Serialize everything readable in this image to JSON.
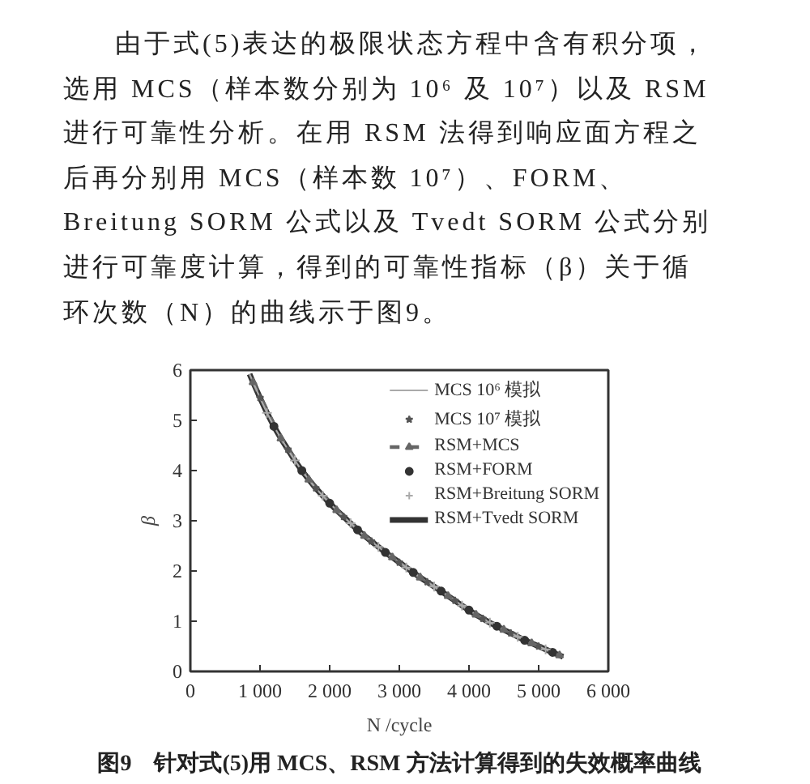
{
  "chart_data": {
    "type": "line",
    "title": "图9　针对式(5)用 MCS、RSM 方法计算得到的失效概率曲线",
    "annotations": [
      "由于式(5)表达的极限状态方程中含有积分项，选用 MCS（样本数分别为 10⁶ 及 10⁷）以及 RSM 进行可靠性分析。在用 RSM 法得到响应面方程之后再分别用 MCS（样本数 10⁷）、FORM、Breitung SORM 公式以及 Tvedt SORM 公式分别进行可靠度计算，得到的可靠性指标（β）关于循环次数（N）的曲线示于图9。"
    ],
    "xlabel": "N /cycle",
    "ylabel": "β",
    "x": [
      850,
      900,
      1000,
      1100,
      1200,
      1300,
      1400,
      1500,
      1600,
      1700,
      1800,
      1900,
      2000,
      2100,
      2200,
      2300,
      2400,
      2500,
      2600,
      2700,
      2800,
      2900,
      3000,
      3100,
      3200,
      3300,
      3400,
      3500,
      3600,
      3700,
      3800,
      3900,
      4000,
      4100,
      4200,
      4300,
      4400,
      4500,
      4600,
      4700,
      4800,
      4900,
      5000,
      5100,
      5200,
      5300,
      5350
    ],
    "series": [
      {
        "name": "MCS 10⁶ 模拟",
        "line_style": "solid",
        "marker": "none",
        "color": "#aaaaaa",
        "values": [
          5.92,
          5.76,
          5.45,
          5.15,
          4.88,
          4.64,
          4.42,
          4.2,
          4.0,
          3.82,
          3.65,
          3.5,
          3.35,
          3.21,
          3.08,
          2.95,
          2.82,
          2.7,
          2.59,
          2.48,
          2.37,
          2.27,
          2.17,
          2.07,
          1.97,
          1.87,
          1.78,
          1.69,
          1.6,
          1.5,
          1.41,
          1.31,
          1.22,
          1.13,
          1.05,
          0.97,
          0.9,
          0.83,
          0.76,
          0.69,
          0.62,
          0.56,
          0.5,
          0.44,
          0.38,
          0.32,
          0.29
        ]
      },
      {
        "name": "MCS 10⁷ 模拟",
        "type": "scatter",
        "marker": "star",
        "color": "#555555",
        "x": [
          1000,
          1400,
          1800,
          2200,
          2600,
          3000,
          3400,
          3800,
          4200,
          4600,
          5000
        ],
        "values": [
          5.45,
          4.42,
          3.65,
          3.08,
          2.59,
          2.17,
          1.78,
          1.41,
          1.05,
          0.76,
          0.5
        ]
      },
      {
        "name": "RSM+MCS",
        "line_style": "dashed",
        "marker": "triangle",
        "color": "#666666",
        "x": [
          900,
          1300,
          1700,
          2100,
          2500,
          2900,
          3300,
          3700,
          4100,
          4500,
          4900,
          5300
        ],
        "values": [
          5.76,
          4.64,
          3.82,
          3.21,
          2.7,
          2.27,
          1.87,
          1.5,
          1.13,
          0.83,
          0.56,
          0.32
        ]
      },
      {
        "name": "RSM+FORM",
        "type": "scatter",
        "marker": "circle",
        "color": "#333333",
        "x": [
          1200,
          1600,
          2000,
          2400,
          2800,
          3200,
          3600,
          4000,
          4400,
          4800,
          5200
        ],
        "values": [
          4.88,
          4.0,
          3.35,
          2.82,
          2.37,
          1.97,
          1.6,
          1.22,
          0.9,
          0.62,
          0.38
        ]
      },
      {
        "name": "RSM+Breitung SORM",
        "type": "scatter",
        "marker": "cross",
        "color": "#aaaaaa",
        "x": [
          1100,
          1500,
          1900,
          2300,
          2700,
          3100,
          3500,
          3900,
          4300,
          4700,
          5100
        ],
        "values": [
          5.15,
          4.2,
          3.5,
          2.95,
          2.48,
          2.07,
          1.69,
          1.31,
          0.97,
          0.69,
          0.44
        ]
      },
      {
        "name": "RSM+Tvedt SORM",
        "line_style": "solid",
        "marker": "none",
        "color": "#333333",
        "values": [
          5.92,
          5.76,
          5.45,
          5.15,
          4.88,
          4.64,
          4.42,
          4.2,
          4.0,
          3.82,
          3.65,
          3.5,
          3.35,
          3.21,
          3.08,
          2.95,
          2.82,
          2.7,
          2.59,
          2.48,
          2.37,
          2.27,
          2.17,
          2.07,
          1.97,
          1.87,
          1.78,
          1.69,
          1.6,
          1.5,
          1.41,
          1.31,
          1.22,
          1.13,
          1.05,
          0.97,
          0.9,
          0.83,
          0.76,
          0.69,
          0.62,
          0.56,
          0.5,
          0.44,
          0.38,
          0.32,
          0.29
        ]
      }
    ],
    "xlim": [
      0,
      6000
    ],
    "xticks": [
      0,
      {
        "value": 1000,
        "label": "1 000"
      },
      {
        "value": 2000,
        "label": "2 000"
      },
      {
        "value": 3000,
        "label": "3 000"
      },
      {
        "value": 4000,
        "label": "4 000"
      },
      {
        "value": 5000,
        "label": "5 000"
      },
      {
        "value": 6000,
        "label": "6 000"
      }
    ],
    "ylim": [
      0,
      6
    ],
    "yticks": [
      0,
      1,
      2,
      3,
      4,
      5,
      6
    ],
    "legend": "top right"
  }
}
